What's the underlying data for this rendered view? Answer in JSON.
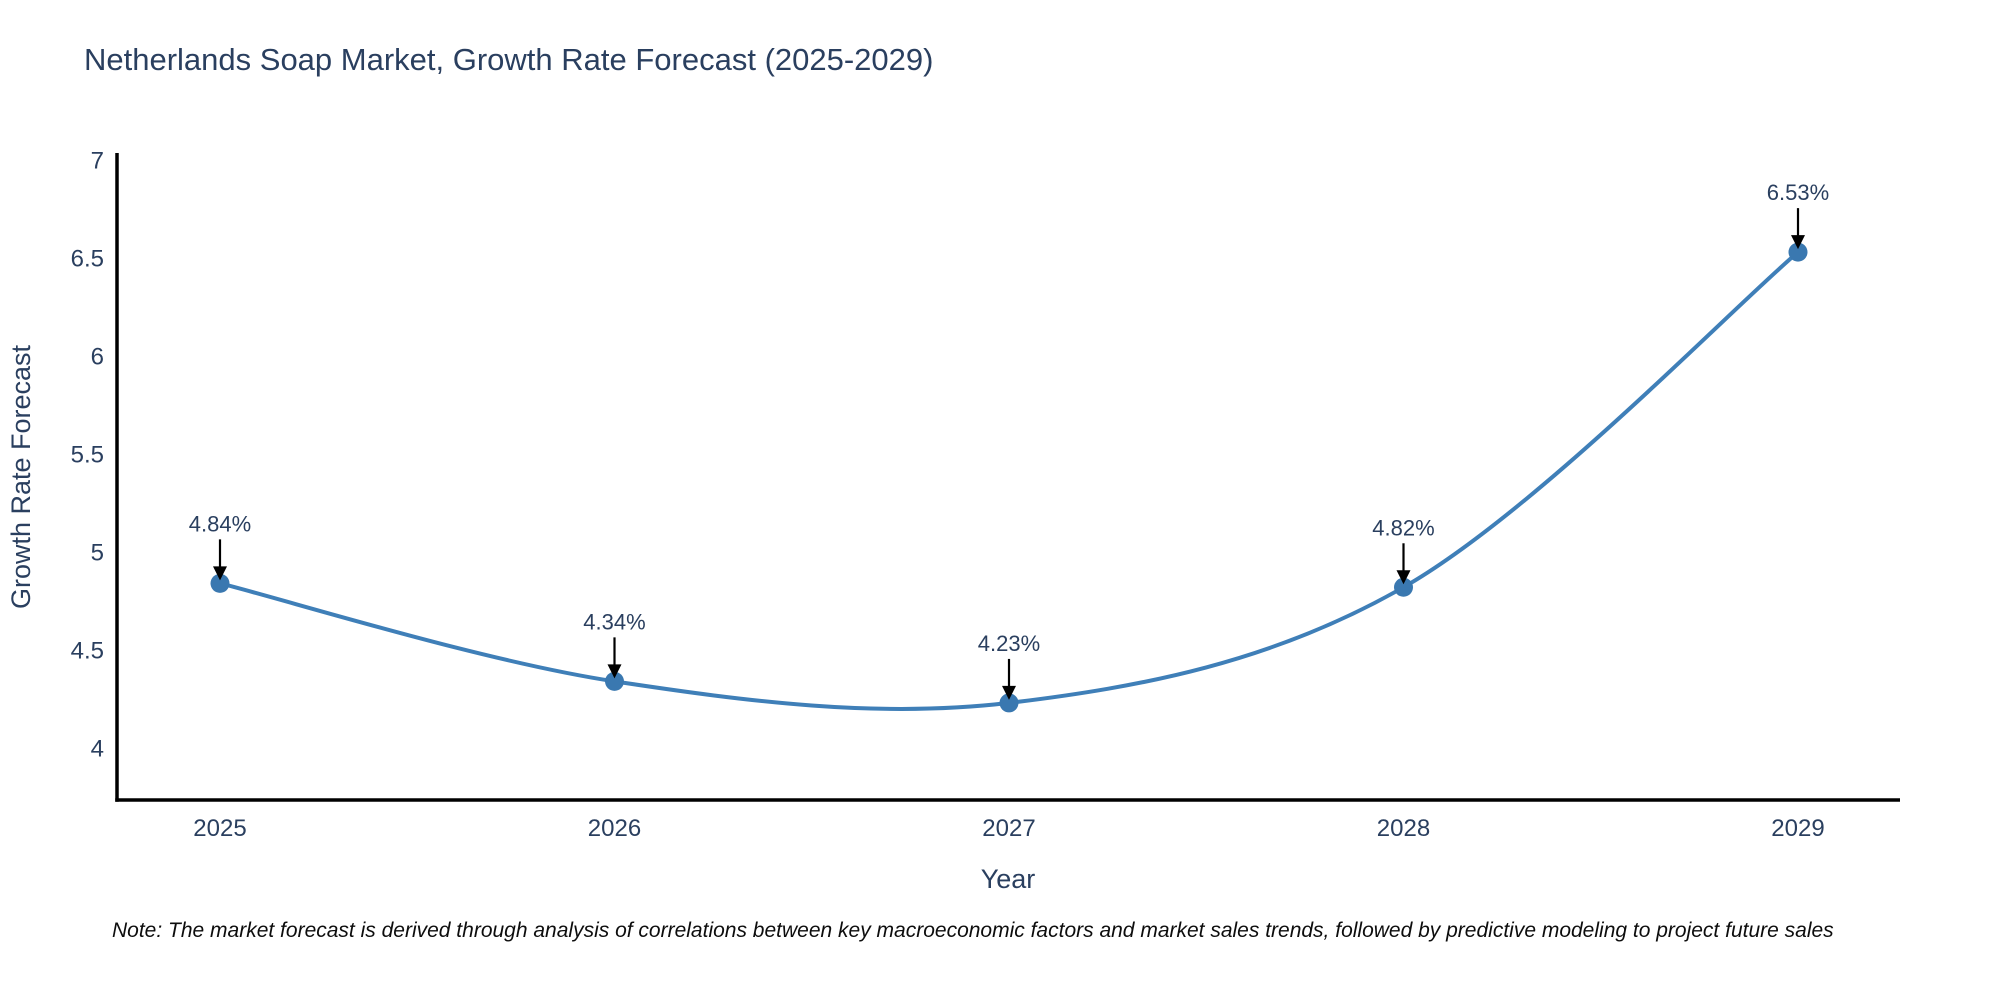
{
  "title": "Netherlands Soap Market, Growth Rate Forecast (2025-2029)",
  "note": "Note: The market forecast is derived through analysis of correlations between key macroeconomic factors and market sales trends, followed by predictive modeling to project future sales",
  "chart_data": {
    "type": "line",
    "title": "Netherlands Soap Market, Growth Rate Forecast (2025-2029)",
    "xlabel": "Year",
    "ylabel": "Growth Rate Forecast",
    "categories": [
      "2025",
      "2026",
      "2027",
      "2028",
      "2029"
    ],
    "series": [
      {
        "name": "Growth Rate Forecast",
        "values": [
          4.84,
          4.34,
          4.23,
          4.82,
          6.53
        ],
        "point_labels": [
          "4.84%",
          "4.34%",
          "4.23%",
          "4.82%",
          "6.53%"
        ]
      }
    ],
    "yticks": [
      4,
      4.5,
      5,
      5.5,
      6,
      6.5,
      7
    ],
    "ylim": [
      3.73,
      7.0
    ],
    "line_shape": "spline",
    "grid": false,
    "legend": "none",
    "markers": true,
    "annotations_have_arrows": true,
    "colors": {
      "line": "#3f7fb8",
      "marker": "#3a78b0",
      "arrow": "#000000",
      "axis_line": "#000000",
      "text": "#2a3f5f",
      "note_text": "#0d0d0d",
      "background": "#ffffff"
    }
  }
}
